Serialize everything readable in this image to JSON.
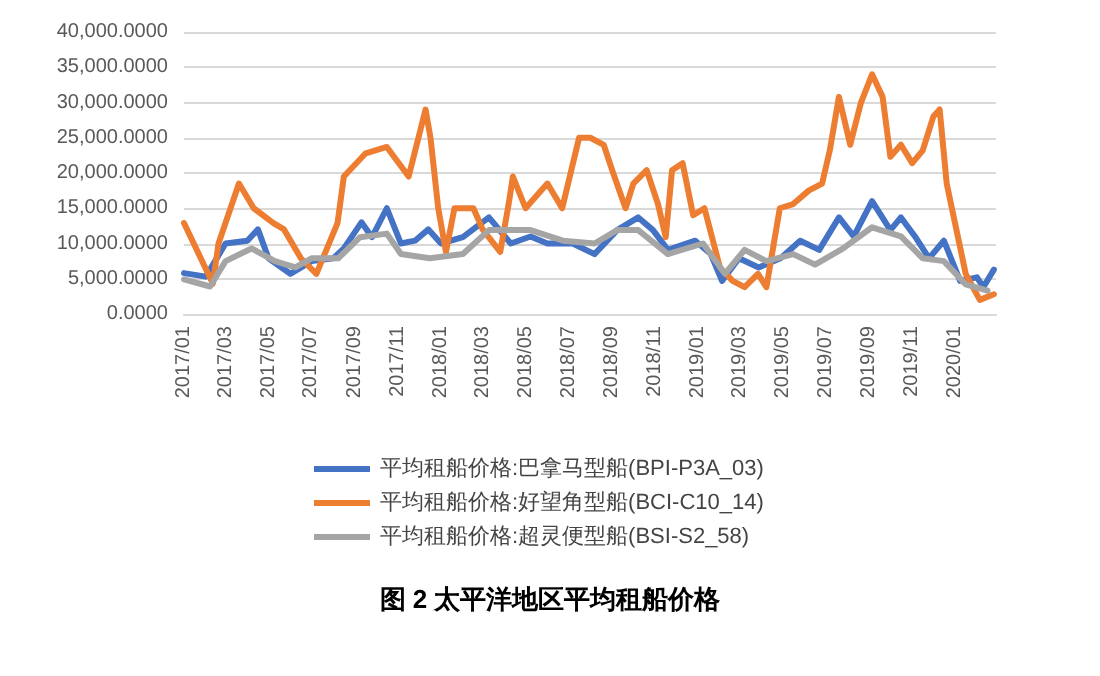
{
  "chart_data": {
    "type": "line",
    "title": "图 2 太平洋地区平均租船价格",
    "xlim": [
      "2017-01-01",
      "2020-02-28"
    ],
    "xticks": [
      {
        "value": "2017-01",
        "label": "2017/01"
      },
      {
        "value": "2017-03",
        "label": "2017/03"
      },
      {
        "value": "2017-05",
        "label": "2017/05"
      },
      {
        "value": "2017-07",
        "label": "2017/07"
      },
      {
        "value": "2017-09",
        "label": "2017/09"
      },
      {
        "value": "2017-11",
        "label": "2017/11"
      },
      {
        "value": "2018-01",
        "label": "2018/01"
      },
      {
        "value": "2018-03",
        "label": "2018/03"
      },
      {
        "value": "2018-05",
        "label": "2018/05"
      },
      {
        "value": "2018-07",
        "label": "2018/07"
      },
      {
        "value": "2018-09",
        "label": "2018/09"
      },
      {
        "value": "2018-11",
        "label": "2018/11"
      },
      {
        "value": "2019-01",
        "label": "2019/01"
      },
      {
        "value": "2019-03",
        "label": "2019/03"
      },
      {
        "value": "2019-05",
        "label": "2019/05"
      },
      {
        "value": "2019-07",
        "label": "2019/07"
      },
      {
        "value": "2019-09",
        "label": "2019/09"
      },
      {
        "value": "2019-11",
        "label": "2019/11"
      },
      {
        "value": "2020-01",
        "label": "2020/01"
      }
    ],
    "ylim": [
      0,
      40000
    ],
    "yticks": [
      {
        "value": 0,
        "label": "0.0000"
      },
      {
        "value": 5000,
        "label": "5,000.0000"
      },
      {
        "value": 10000,
        "label": "10,000.0000"
      },
      {
        "value": 15000,
        "label": "15,000.0000"
      },
      {
        "value": 20000,
        "label": "20,000.0000"
      },
      {
        "value": 25000,
        "label": "25,000.0000"
      },
      {
        "value": 30000,
        "label": "30,000.0000"
      },
      {
        "value": 35000,
        "label": "35,000.0000"
      },
      {
        "value": 40000,
        "label": "40,000.0000"
      }
    ],
    "grid": "y",
    "legend": "bottom",
    "marker": "none",
    "line_style": "solid",
    "series": [
      {
        "name": "平均租船价格:巴拿马型船(BPI-P3A_03)",
        "color": "#4472c4",
        "x": [
          "2017-01-01",
          "2017-02-01",
          "2017-03-01",
          "2017-04-01",
          "2017-04-16",
          "2017-05-01",
          "2017-06-01",
          "2017-07-01",
          "2017-08-01",
          "2017-08-16",
          "2017-09-10",
          "2017-09-25",
          "2017-10-16",
          "2017-11-05",
          "2017-11-25",
          "2017-12-14",
          "2018-01-01",
          "2018-02-01",
          "2018-03-10",
          "2018-04-10",
          "2018-05-08",
          "2018-06-01",
          "2018-07-07",
          "2018-08-07",
          "2018-09-08",
          "2018-10-08",
          "2018-10-29",
          "2018-11-19",
          "2018-12-28",
          "2019-01-19",
          "2019-02-04",
          "2019-02-28",
          "2019-03-28",
          "2019-04-28",
          "2019-05-26",
          "2019-06-22",
          "2019-07-20",
          "2019-08-10",
          "2019-09-05",
          "2019-10-01",
          "2019-10-16",
          "2019-11-05",
          "2019-11-25",
          "2019-12-16",
          "2020-01-08",
          "2020-02-01",
          "2020-02-10",
          "2020-02-25"
        ],
        "values": [
          5800,
          5300,
          10000,
          10400,
          12000,
          7900,
          5700,
          7500,
          7900,
          9300,
          13000,
          10900,
          15000,
          10000,
          10400,
          12000,
          10000,
          10900,
          13700,
          10000,
          11000,
          10000,
          10000,
          8500,
          11900,
          13700,
          11900,
          9100,
          10400,
          8500,
          4700,
          7900,
          6600,
          7900,
          10400,
          9100,
          13700,
          11000,
          16000,
          11900,
          13700,
          11000,
          7900,
          10400,
          4700,
          5200,
          3800,
          6300
        ]
      },
      {
        "name": "平均租船价格:好望角型船(BCI-C10_14)",
        "color": "#ed7d31",
        "x": [
          "2017-01-01",
          "2017-02-11",
          "2017-02-19",
          "2017-03-20",
          "2017-04-10",
          "2017-05-08",
          "2017-05-23",
          "2017-06-16",
          "2017-07-08",
          "2017-08-07",
          "2017-08-16",
          "2017-09-16",
          "2017-10-16",
          "2017-11-16",
          "2017-12-10",
          "2017-12-17",
          "2017-12-28",
          "2018-01-08",
          "2018-01-20",
          "2018-02-16",
          "2018-03-01",
          "2018-03-26",
          "2018-04-07",
          "2018-04-13",
          "2018-05-01",
          "2018-06-01",
          "2018-06-22",
          "2018-07-16",
          "2018-08-01",
          "2018-08-20",
          "2018-09-01",
          "2018-09-20",
          "2018-10-01",
          "2018-10-20",
          "2018-11-05",
          "2018-11-16",
          "2018-11-25",
          "2018-12-10",
          "2018-12-25",
          "2019-01-10",
          "2019-02-01",
          "2019-02-19",
          "2019-03-08",
          "2019-03-27",
          "2019-04-08",
          "2019-04-27",
          "2019-05-16",
          "2019-06-07",
          "2019-06-26",
          "2019-07-07",
          "2019-07-20",
          "2019-08-05",
          "2019-08-20",
          "2019-09-05",
          "2019-09-20",
          "2019-10-01",
          "2019-10-16",
          "2019-11-01",
          "2019-11-16",
          "2019-12-01",
          "2019-12-10",
          "2019-12-20",
          "2020-01-05",
          "2020-01-16",
          "2020-02-05",
          "2020-02-25"
        ],
        "values": [
          12900,
          4300,
          10000,
          18500,
          15000,
          12900,
          12000,
          7900,
          5700,
          12900,
          19500,
          22800,
          23700,
          19500,
          29000,
          25000,
          15000,
          8800,
          15000,
          15000,
          12000,
          8800,
          15600,
          19500,
          15000,
          18500,
          15000,
          25000,
          25000,
          24000,
          20400,
          15000,
          18500,
          20400,
          15600,
          10900,
          20400,
          21400,
          14000,
          15000,
          6600,
          4700,
          3800,
          5700,
          3800,
          15000,
          15600,
          17500,
          18500,
          23200,
          30800,
          24000,
          29900,
          34000,
          30800,
          22300,
          24000,
          21400,
          23200,
          28000,
          29000,
          18500,
          10900,
          5700,
          2000,
          2800
        ]
      },
      {
        "name": "平均租船价格:超灵便型船(BSI-S2_58)",
        "color": "#a5a5a5",
        "x": [
          "2017-01-01",
          "2017-02-07",
          "2017-03-01",
          "2017-04-07",
          "2017-05-10",
          "2017-06-08",
          "2017-07-01",
          "2017-08-08",
          "2017-09-08",
          "2017-10-16",
          "2017-11-05",
          "2017-12-16",
          "2018-02-01",
          "2018-03-10",
          "2018-05-08",
          "2018-06-23",
          "2018-08-07",
          "2018-09-08",
          "2018-10-08",
          "2018-11-19",
          "2019-01-08",
          "2019-02-08",
          "2019-03-08",
          "2019-04-08",
          "2019-05-16",
          "2019-06-16",
          "2019-07-26",
          "2019-09-05",
          "2019-10-16",
          "2019-11-16",
          "2019-12-16",
          "2020-01-16",
          "2020-02-16"
        ],
        "values": [
          4900,
          3900,
          7500,
          9300,
          7500,
          6600,
          7900,
          7900,
          10900,
          11400,
          8500,
          7900,
          8500,
          11900,
          11900,
          10400,
          10000,
          11900,
          11900,
          8500,
          10000,
          5700,
          9100,
          7500,
          8500,
          7000,
          9300,
          12300,
          11000,
          7900,
          7500,
          4200,
          3300
        ]
      }
    ]
  }
}
